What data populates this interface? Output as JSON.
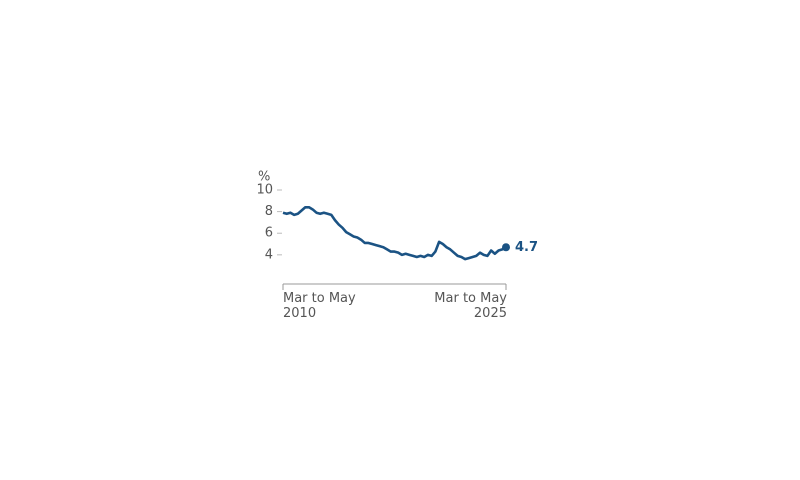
{
  "chart_data": {
    "type": "line",
    "y_label": "%",
    "categories": [
      "Mar to May 2010",
      null,
      null,
      null,
      null,
      null,
      null,
      null,
      null,
      null,
      null,
      null,
      null,
      null,
      null,
      null,
      null,
      null,
      null,
      null,
      null,
      null,
      null,
      null,
      null,
      null,
      null,
      null,
      null,
      null,
      null,
      null,
      null,
      null,
      null,
      null,
      null,
      null,
      null,
      null,
      null,
      null,
      null,
      null,
      null,
      null,
      null,
      null,
      null,
      null,
      null,
      null,
      null,
      null,
      null,
      null,
      null,
      null,
      null,
      null,
      "Mar to May 2025"
    ],
    "series": [
      {
        "color": "#1b5384",
        "values": [
          7.9,
          7.8,
          7.9,
          7.7,
          7.8,
          8.1,
          8.4,
          8.4,
          8.2,
          7.9,
          7.8,
          7.9,
          7.8,
          7.7,
          7.2,
          6.8,
          6.5,
          6.1,
          5.9,
          5.7,
          5.6,
          5.4,
          5.1,
          5.1,
          5.0,
          4.9,
          4.8,
          4.7,
          4.5,
          4.3,
          4.3,
          4.2,
          4.0,
          4.1,
          4.0,
          3.9,
          3.8,
          3.9,
          3.8,
          4.0,
          3.9,
          4.3,
          5.2,
          5.0,
          4.7,
          4.5,
          4.2,
          3.9,
          3.8,
          3.6,
          3.7,
          3.8,
          3.9,
          4.2,
          4.0,
          3.9,
          4.4,
          4.1,
          4.4,
          4.5,
          4.7
        ]
      }
    ],
    "ylim": [
      1.3,
      10
    ],
    "yticks": [
      4,
      6,
      8,
      10
    ]
  }
}
